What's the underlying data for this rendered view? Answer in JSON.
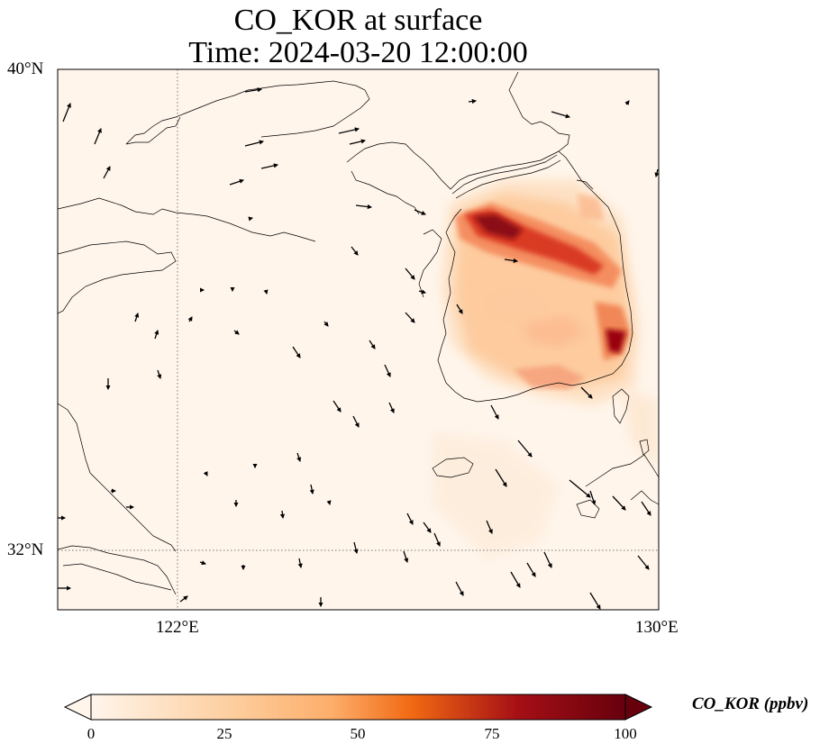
{
  "title": {
    "line1": "CO_KOR at surface",
    "line2": "Time: 2024-03-20 12:00:00"
  },
  "axes": {
    "lat_ticks": [
      "40°N",
      "32°N"
    ],
    "lon_ticks": [
      "122°E",
      "130°E"
    ]
  },
  "map": {
    "variable": "CO_KOR",
    "units": "ppbv",
    "extent": {
      "lon": [
        120,
        130
      ],
      "lat": [
        31,
        40
      ]
    },
    "gridlines": {
      "lon": [
        122
      ],
      "lat": [
        32
      ],
      "style": "dotted"
    },
    "background_color": "#fff5eb",
    "colormap": "Oranges-Reds"
  },
  "colorbar": {
    "label": "CO_KOR (ppbv)",
    "ticks": [
      "0",
      "25",
      "50",
      "75",
      "100"
    ],
    "range": [
      0,
      100
    ],
    "extend": "both",
    "colors": [
      "#fff5eb",
      "#fdd0a2",
      "#fdae6b",
      "#f16913",
      "#d94801",
      "#a50f15",
      "#67000d"
    ]
  }
}
